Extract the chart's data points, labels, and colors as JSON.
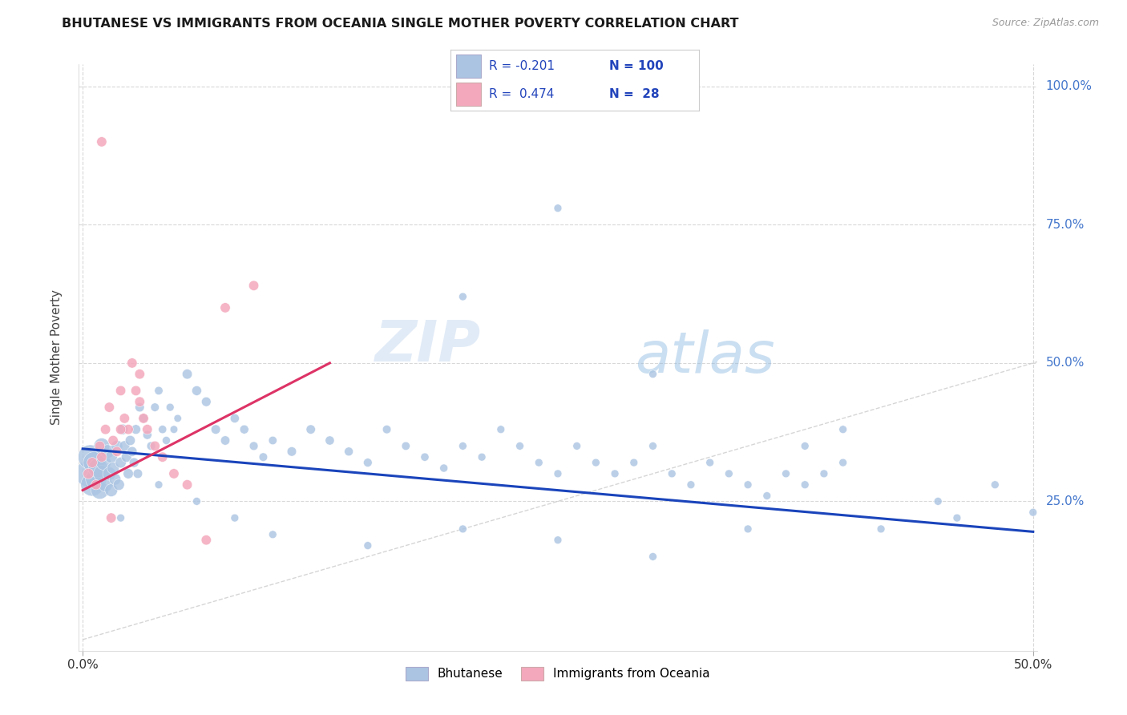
{
  "title": "BHUTANESE VS IMMIGRANTS FROM OCEANIA SINGLE MOTHER POVERTY CORRELATION CHART",
  "source": "Source: ZipAtlas.com",
  "ylabel": "Single Mother Poverty",
  "y_ticks_labels": [
    "100.0%",
    "75.0%",
    "50.0%",
    "25.0%"
  ],
  "y_tick_vals": [
    1.0,
    0.75,
    0.5,
    0.25
  ],
  "x_range": [
    -0.002,
    0.502
  ],
  "y_range": [
    -0.02,
    1.04
  ],
  "legend_blue_r": "-0.201",
  "legend_blue_n": "100",
  "legend_pink_r": "0.474",
  "legend_pink_n": "28",
  "blue_color": "#aac4e2",
  "pink_color": "#f4a8bc",
  "blue_line_color": "#1a44bb",
  "pink_line_color": "#dd3366",
  "diag_line_color": "#cccccc",
  "watermark_zip": "ZIP",
  "watermark_atlas": "atlas",
  "blue_trend_x0": 0.0,
  "blue_trend_y0": 0.345,
  "blue_trend_x1": 0.5,
  "blue_trend_y1": 0.195,
  "pink_trend_x0": 0.0,
  "pink_trend_y0": 0.27,
  "pink_trend_x1": 0.13,
  "pink_trend_y1": 0.5,
  "blue_scatter_x": [
    0.003,
    0.004,
    0.005,
    0.006,
    0.007,
    0.008,
    0.009,
    0.01,
    0.01,
    0.011,
    0.012,
    0.013,
    0.014,
    0.015,
    0.015,
    0.016,
    0.017,
    0.018,
    0.019,
    0.02,
    0.021,
    0.022,
    0.023,
    0.024,
    0.025,
    0.026,
    0.027,
    0.028,
    0.029,
    0.03,
    0.032,
    0.034,
    0.036,
    0.038,
    0.04,
    0.042,
    0.044,
    0.046,
    0.048,
    0.05,
    0.055,
    0.06,
    0.065,
    0.07,
    0.075,
    0.08,
    0.085,
    0.09,
    0.095,
    0.1,
    0.11,
    0.12,
    0.13,
    0.14,
    0.15,
    0.16,
    0.17,
    0.18,
    0.19,
    0.2,
    0.21,
    0.22,
    0.23,
    0.24,
    0.25,
    0.26,
    0.27,
    0.28,
    0.29,
    0.3,
    0.31,
    0.32,
    0.33,
    0.34,
    0.35,
    0.36,
    0.37,
    0.38,
    0.39,
    0.4,
    0.2,
    0.25,
    0.3,
    0.35,
    0.4,
    0.45,
    0.5,
    0.42,
    0.46,
    0.48,
    0.38,
    0.3,
    0.25,
    0.2,
    0.15,
    0.1,
    0.08,
    0.06,
    0.04,
    0.02
  ],
  "blue_scatter_y": [
    0.3,
    0.33,
    0.28,
    0.32,
    0.29,
    0.31,
    0.27,
    0.3,
    0.35,
    0.32,
    0.28,
    0.34,
    0.3,
    0.27,
    0.33,
    0.31,
    0.29,
    0.35,
    0.28,
    0.32,
    0.38,
    0.35,
    0.33,
    0.3,
    0.36,
    0.34,
    0.32,
    0.38,
    0.3,
    0.42,
    0.4,
    0.37,
    0.35,
    0.42,
    0.45,
    0.38,
    0.36,
    0.42,
    0.38,
    0.4,
    0.48,
    0.45,
    0.43,
    0.38,
    0.36,
    0.4,
    0.38,
    0.35,
    0.33,
    0.36,
    0.34,
    0.38,
    0.36,
    0.34,
    0.32,
    0.38,
    0.35,
    0.33,
    0.31,
    0.35,
    0.33,
    0.38,
    0.35,
    0.32,
    0.3,
    0.35,
    0.32,
    0.3,
    0.32,
    0.35,
    0.3,
    0.28,
    0.32,
    0.3,
    0.28,
    0.26,
    0.3,
    0.28,
    0.3,
    0.32,
    0.62,
    0.78,
    0.48,
    0.2,
    0.38,
    0.25,
    0.23,
    0.2,
    0.22,
    0.28,
    0.35,
    0.15,
    0.18,
    0.2,
    0.17,
    0.19,
    0.22,
    0.25,
    0.28,
    0.22
  ],
  "blue_scatter_sizes": [
    550,
    480,
    420,
    380,
    350,
    300,
    250,
    220,
    200,
    180,
    160,
    150,
    140,
    130,
    120,
    115,
    110,
    105,
    100,
    95,
    90,
    88,
    85,
    82,
    80,
    78,
    75,
    73,
    70,
    68,
    65,
    63,
    60,
    58,
    56,
    54,
    52,
    50,
    48,
    46,
    80,
    75,
    72,
    70,
    68,
    65,
    63,
    60,
    58,
    56,
    70,
    68,
    65,
    62,
    60,
    58,
    56,
    54,
    52,
    50,
    50,
    50,
    50,
    50,
    50,
    50,
    50,
    50,
    50,
    50,
    50,
    50,
    50,
    50,
    50,
    50,
    50,
    50,
    50,
    50,
    50,
    50,
    50,
    50,
    50,
    50,
    50,
    50,
    50,
    50,
    50,
    50,
    50,
    50,
    50,
    50,
    50,
    50,
    50,
    50
  ],
  "pink_scatter_x": [
    0.003,
    0.005,
    0.007,
    0.009,
    0.01,
    0.012,
    0.014,
    0.016,
    0.018,
    0.02,
    0.022,
    0.024,
    0.026,
    0.028,
    0.03,
    0.032,
    0.034,
    0.038,
    0.042,
    0.048,
    0.055,
    0.065,
    0.075,
    0.09,
    0.01,
    0.02,
    0.03,
    0.015
  ],
  "pink_scatter_y": [
    0.3,
    0.32,
    0.28,
    0.35,
    0.33,
    0.38,
    0.42,
    0.36,
    0.34,
    0.45,
    0.4,
    0.38,
    0.5,
    0.45,
    0.43,
    0.4,
    0.38,
    0.35,
    0.33,
    0.3,
    0.28,
    0.18,
    0.6,
    0.64,
    0.9,
    0.38,
    0.48,
    0.22
  ],
  "pink_scatter_sizes": [
    90,
    85,
    80,
    80,
    80,
    80,
    80,
    80,
    80,
    80,
    80,
    80,
    80,
    80,
    80,
    80,
    80,
    80,
    80,
    80,
    80,
    80,
    80,
    80,
    80,
    80,
    80,
    80
  ]
}
